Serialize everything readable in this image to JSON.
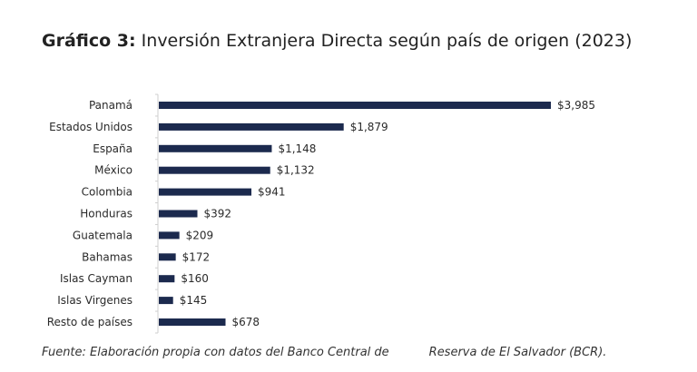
{
  "title": {
    "prefix": "Gráfico 3:",
    "text": "Inversión Extranjera Directa según país de origen (2023)"
  },
  "source": {
    "part1": "Fuente: Elaboración propia con datos del Banco Central de",
    "part2": "Reserva de El Salvador (BCR)."
  },
  "colors": {
    "bar": "#1c2a4e",
    "axis": "#cfcfcf"
  },
  "chart_data": {
    "type": "bar",
    "orientation": "horizontal",
    "categories": [
      "Panamá",
      "Estados Unidos",
      "España",
      "México",
      "Colombia",
      "Honduras",
      "Guatemala",
      "Bahamas",
      "Islas Cayman",
      "Islas Virgenes",
      "Resto de países"
    ],
    "values": [
      3985,
      1879,
      1148,
      1132,
      941,
      392,
      209,
      172,
      160,
      145,
      678
    ],
    "data_labels": [
      "$3,985",
      "$1,879",
      "$1,148",
      "$1,132",
      "$941",
      "$392",
      "$209",
      "$172",
      "$160",
      "$145",
      "$678"
    ],
    "xlim": [
      0,
      3985
    ],
    "grid": false,
    "legend": "none"
  }
}
